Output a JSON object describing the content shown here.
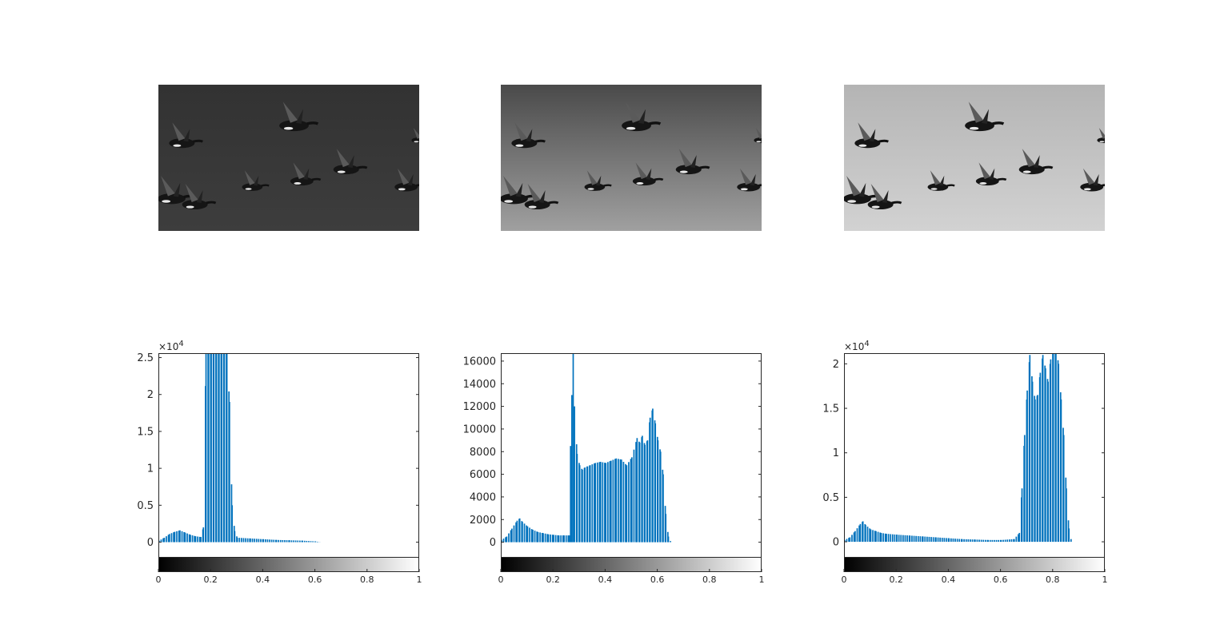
{
  "figure": {
    "background": "#ffffff",
    "bar_color": "#0072bd",
    "axes_color": "#262626",
    "panels": [
      {
        "image": {
          "label": "",
          "sky_tone_top": "#323232",
          "sky_tone_bottom": "#3d3d3d"
        },
        "histogram": {
          "exponent_label": "×10",
          "exponent_power": "4",
          "ytick_labels": [
            "0",
            "0.5",
            "1",
            "1.5",
            "2",
            "2.5"
          ],
          "xtick_labels": [
            "0",
            "0.2",
            "0.4",
            "0.6",
            "0.8",
            "1"
          ]
        }
      },
      {
        "image": {
          "label": "",
          "sky_tone_top": "#4a4a4a",
          "sky_tone_bottom": "#a0a0a0"
        },
        "histogram": {
          "exponent_label": "",
          "exponent_power": "",
          "ytick_labels": [
            "0",
            "2000",
            "4000",
            "6000",
            "8000",
            "10000",
            "12000",
            "14000",
            "16000"
          ],
          "xtick_labels": [
            "0",
            "0.2",
            "0.4",
            "0.6",
            "0.8",
            "1"
          ]
        }
      },
      {
        "image": {
          "label": "",
          "sky_tone_top": "#b4b4b4",
          "sky_tone_bottom": "#d2d2d2"
        },
        "histogram": {
          "exponent_label": "×10",
          "exponent_power": "4",
          "ytick_labels": [
            "0",
            "0.5",
            "1",
            "1.5",
            "2"
          ],
          "xtick_labels": [
            "0",
            "0.2",
            "0.4",
            "0.6",
            "0.8",
            "1"
          ]
        }
      }
    ]
  },
  "chart_data": [
    {
      "type": "bar",
      "title": "",
      "xlabel": "",
      "ylabel": "",
      "xlim": [
        0,
        1
      ],
      "ylim": [
        -2000,
        25600
      ],
      "yticks": [
        0,
        5000,
        10000,
        15000,
        20000,
        25000
      ],
      "xticks": [
        0,
        0.2,
        0.4,
        0.6,
        0.8,
        1
      ],
      "colorbar": "gray",
      "x": [
        0.0,
        0.02,
        0.04,
        0.06,
        0.08,
        0.1,
        0.12,
        0.14,
        0.16,
        0.17,
        0.18,
        0.19,
        0.2,
        0.21,
        0.22,
        0.23,
        0.24,
        0.25,
        0.26,
        0.27,
        0.28,
        0.29,
        0.3,
        0.35,
        0.4,
        0.45,
        0.5,
        0.55,
        0.6,
        0.62
      ],
      "values": [
        200,
        600,
        1100,
        1400,
        1600,
        1300,
        1000,
        800,
        700,
        2000,
        26000,
        26000,
        26000,
        26000,
        26000,
        26000,
        26000,
        26000,
        26000,
        19000,
        5000,
        1500,
        600,
        500,
        400,
        300,
        250,
        200,
        100,
        0
      ]
    },
    {
      "type": "bar",
      "title": "",
      "xlabel": "",
      "ylabel": "",
      "xlim": [
        0,
        1
      ],
      "ylim": [
        -1300,
        16700
      ],
      "yticks": [
        0,
        2000,
        4000,
        6000,
        8000,
        10000,
        12000,
        14000,
        16000
      ],
      "xticks": [
        0,
        0.2,
        0.4,
        0.6,
        0.8,
        1
      ],
      "colorbar": "gray",
      "x": [
        0.0,
        0.02,
        0.04,
        0.06,
        0.07,
        0.08,
        0.1,
        0.12,
        0.14,
        0.16,
        0.18,
        0.2,
        0.22,
        0.24,
        0.26,
        0.265,
        0.27,
        0.275,
        0.28,
        0.29,
        0.3,
        0.31,
        0.32,
        0.33,
        0.34,
        0.36,
        0.38,
        0.4,
        0.42,
        0.44,
        0.46,
        0.48,
        0.5,
        0.52,
        0.53,
        0.54,
        0.55,
        0.56,
        0.57,
        0.58,
        0.59,
        0.6,
        0.61,
        0.62,
        0.63,
        0.64,
        0.65
      ],
      "values": [
        200,
        500,
        1200,
        1900,
        2100,
        1800,
        1400,
        1100,
        900,
        800,
        700,
        650,
        600,
        600,
        600,
        8500,
        13000,
        17000,
        12000,
        7800,
        6800,
        6400,
        6600,
        6700,
        6800,
        7000,
        7100,
        7000,
        7200,
        7400,
        7300,
        6800,
        7500,
        9200,
        8800,
        9400,
        8600,
        9000,
        11000,
        11800,
        10500,
        9000,
        8000,
        6000,
        2500,
        500,
        0
      ]
    },
    {
      "type": "bar",
      "title": "",
      "xlabel": "",
      "ylabel": "",
      "xlim": [
        0,
        1
      ],
      "ylim": [
        -1700,
        21200
      ],
      "yticks": [
        0,
        5000,
        10000,
        15000,
        20000
      ],
      "xticks": [
        0,
        0.2,
        0.4,
        0.6,
        0.8,
        1
      ],
      "colorbar": "gray",
      "x": [
        0.0,
        0.02,
        0.04,
        0.06,
        0.07,
        0.08,
        0.1,
        0.12,
        0.14,
        0.16,
        0.2,
        0.25,
        0.3,
        0.35,
        0.4,
        0.45,
        0.5,
        0.55,
        0.6,
        0.65,
        0.67,
        0.68,
        0.69,
        0.7,
        0.71,
        0.72,
        0.73,
        0.74,
        0.75,
        0.76,
        0.77,
        0.78,
        0.79,
        0.8,
        0.81,
        0.82,
        0.83,
        0.84,
        0.85,
        0.86,
        0.87
      ],
      "values": [
        200,
        500,
        1200,
        2000,
        2300,
        1900,
        1400,
        1200,
        1000,
        900,
        800,
        700,
        600,
        500,
        400,
        300,
        250,
        200,
        200,
        300,
        1000,
        6000,
        12000,
        17000,
        21000,
        18000,
        16000,
        16500,
        19000,
        21000,
        19500,
        18000,
        20500,
        21500,
        22000,
        20000,
        16000,
        12000,
        6000,
        1500,
        0
      ]
    }
  ]
}
